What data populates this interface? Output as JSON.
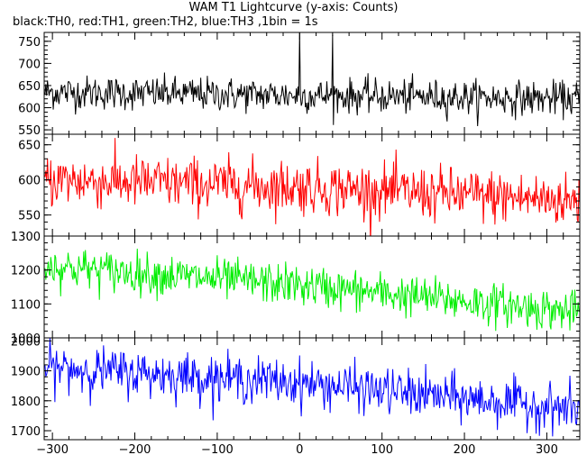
{
  "title": "WAM T1 Lightcurve (y-axis: Counts)",
  "subtitle": "black:TH0, red:TH1, green:TH2, blue:TH3 ,1bin = 1s",
  "chart_data": {
    "type": "line",
    "xlabel": "",
    "ylabel": "Counts",
    "bin_seconds": 1,
    "xlim": [
      -310,
      340
    ],
    "xticks": [
      -300,
      -200,
      -100,
      0,
      100,
      200,
      300
    ],
    "panels": [
      {
        "channel": "TH0",
        "color": "#000000",
        "ylim": [
          540,
          770
        ],
        "yticks": [
          550,
          600,
          650,
          700,
          750
        ],
        "trend": [
          [
            -300,
            635
          ],
          [
            0,
            628
          ],
          [
            340,
            620
          ]
        ],
        "noise_sd": 19,
        "spikes": [
          {
            "x": 0,
            "y": 770
          },
          {
            "x": 40,
            "y": 765
          }
        ]
      },
      {
        "channel": "TH1",
        "color": "#ff0000",
        "ylim": [
          520,
          665
        ],
        "yticks": [
          550,
          600,
          650
        ],
        "trend": [
          [
            -300,
            600
          ],
          [
            0,
            590
          ],
          [
            340,
            570
          ]
        ],
        "noise_sd": 19,
        "spikes": []
      },
      {
        "channel": "TH2",
        "color": "#00ee00",
        "ylim": [
          1000,
          1300
        ],
        "yticks": [
          1000,
          1100,
          1200,
          1300
        ],
        "trend": [
          [
            -300,
            1210
          ],
          [
            0,
            1155
          ],
          [
            340,
            1075
          ]
        ],
        "noise_sd": 30,
        "spikes": []
      },
      {
        "channel": "TH3",
        "color": "#0000ff",
        "ylim": [
          1670,
          2010
        ],
        "yticks": [
          1700,
          1800,
          1900,
          2000
        ],
        "trend": [
          [
            -300,
            1910
          ],
          [
            0,
            1860
          ],
          [
            340,
            1770
          ]
        ],
        "noise_sd": 38,
        "spikes": []
      }
    ]
  }
}
